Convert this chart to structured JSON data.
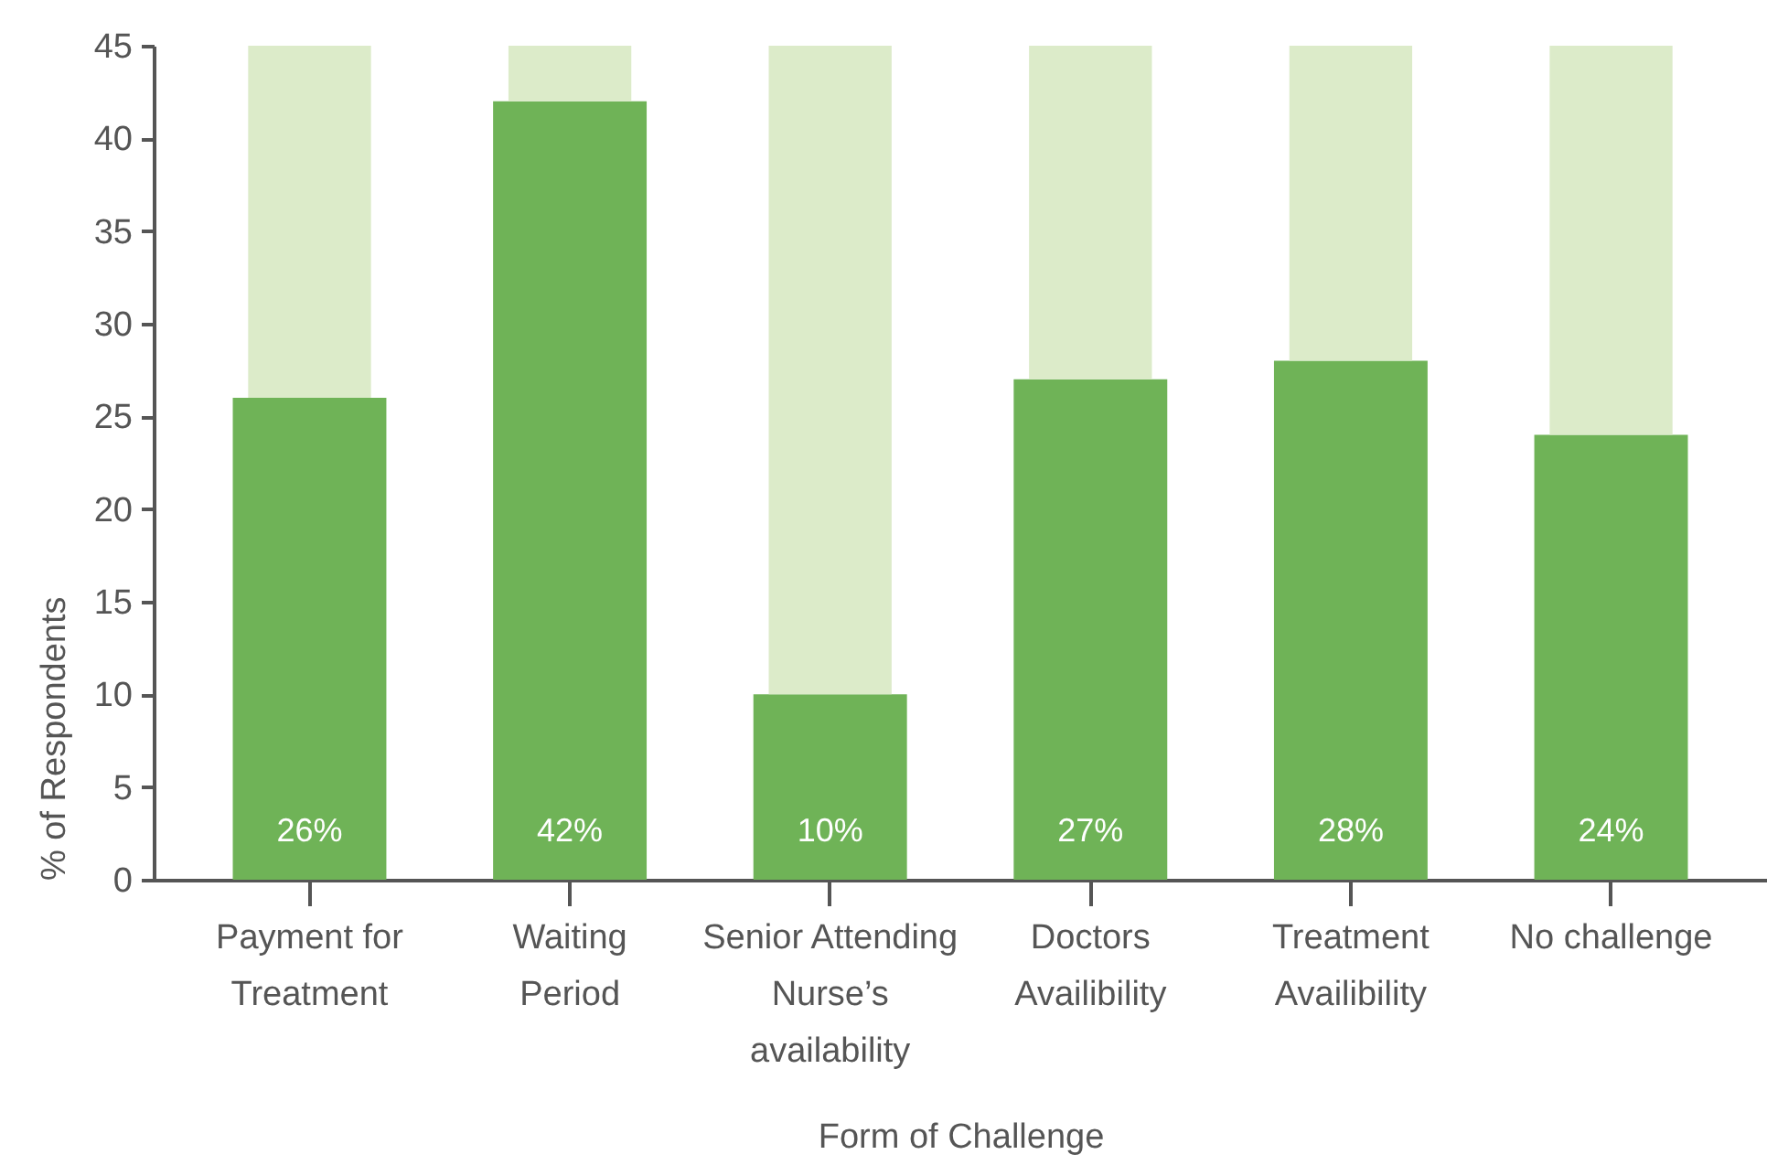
{
  "chart_data": {
    "type": "bar",
    "xlabel": "Form of Challenge",
    "ylabel": "% of Respondents",
    "categories": [
      "Payment for\nTreatment",
      "Waiting\nPeriod",
      "Senior Attending\nNurse’s\navailability",
      "Doctors\nAvailibility",
      "Treatment\nAvailibility",
      "No challenge"
    ],
    "stacked": true,
    "series": [
      {
        "color": "#6fb357",
        "values": [
          26,
          42,
          10,
          27,
          28,
          24
        ],
        "value_labels": [
          "26%",
          "42%",
          "10%",
          "27%",
          "28%",
          "24%"
        ]
      },
      {
        "color": "#dcebc9",
        "values": [
          19,
          3,
          35,
          18,
          17,
          21
        ]
      }
    ],
    "ylim": [
      0,
      45
    ],
    "yticks": [
      0,
      5,
      10,
      15,
      20,
      25,
      30,
      35,
      40,
      45
    ]
  }
}
